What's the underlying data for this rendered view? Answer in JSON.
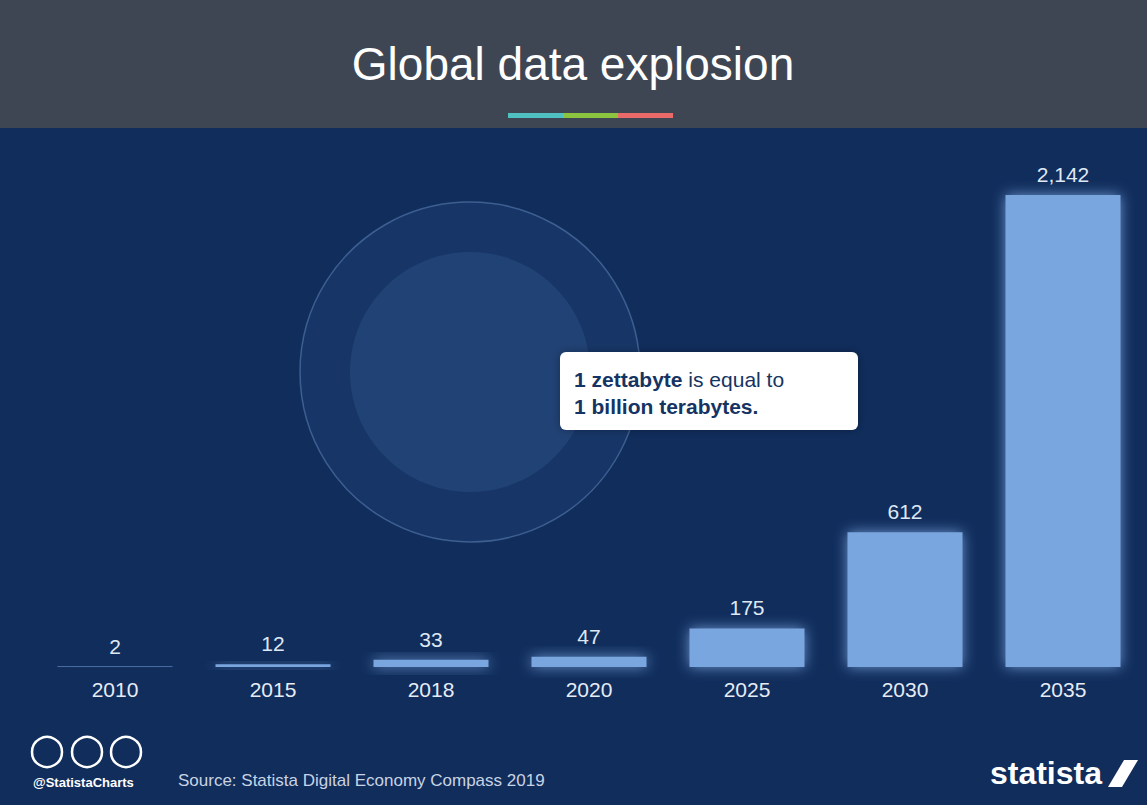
{
  "chart_data": {
    "type": "bar",
    "title": "Global data explosion",
    "annotation": [
      "1 zettabyte is equal to",
      "1 billion terabytes."
    ],
    "credit": "@StatistaCharts",
    "source": "Source: Statista Digital Economy Compass 2019",
    "brand": "statista",
    "categories": [
      "2010",
      "2015",
      "2018",
      "2020",
      "2025",
      "2030",
      "2035"
    ],
    "values": [
      2,
      12,
      33,
      47,
      175,
      612,
      2142
    ],
    "value_labels": [
      "2",
      "12",
      "33",
      "47",
      "175",
      "612",
      "2,142"
    ],
    "color": "#7aa6e0",
    "ylim": [
      0,
      2142
    ],
    "data_labels": true,
    "tick_labels": "x",
    "grid": false
  }
}
